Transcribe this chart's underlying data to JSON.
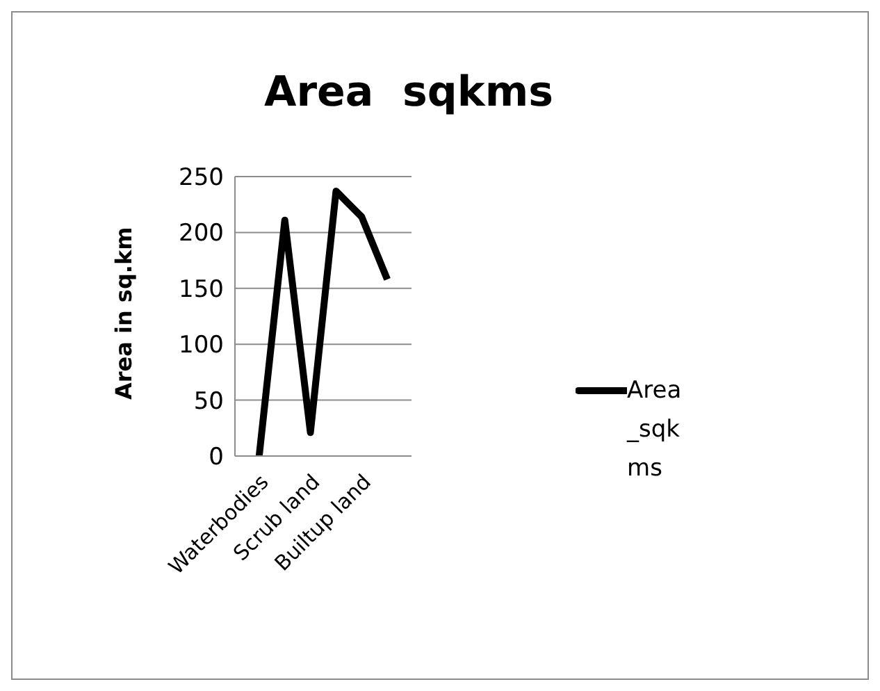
{
  "chart_data": {
    "type": "line",
    "title": "Area  sqkms",
    "ylabel": "Area in sq.km",
    "categories": [
      "Waterbodies",
      null,
      "Scrub land",
      null,
      "Builtup land",
      null
    ],
    "series": [
      {
        "name": "Area_sqkms",
        "color": "#000000",
        "values": [
          0,
          211,
          21,
          237,
          214,
          158
        ]
      }
    ],
    "ylim": [
      0,
      250
    ],
    "yticks": [
      0,
      50,
      100,
      150,
      200,
      250
    ],
    "grid": "y",
    "legend": "right",
    "marker": "none"
  }
}
